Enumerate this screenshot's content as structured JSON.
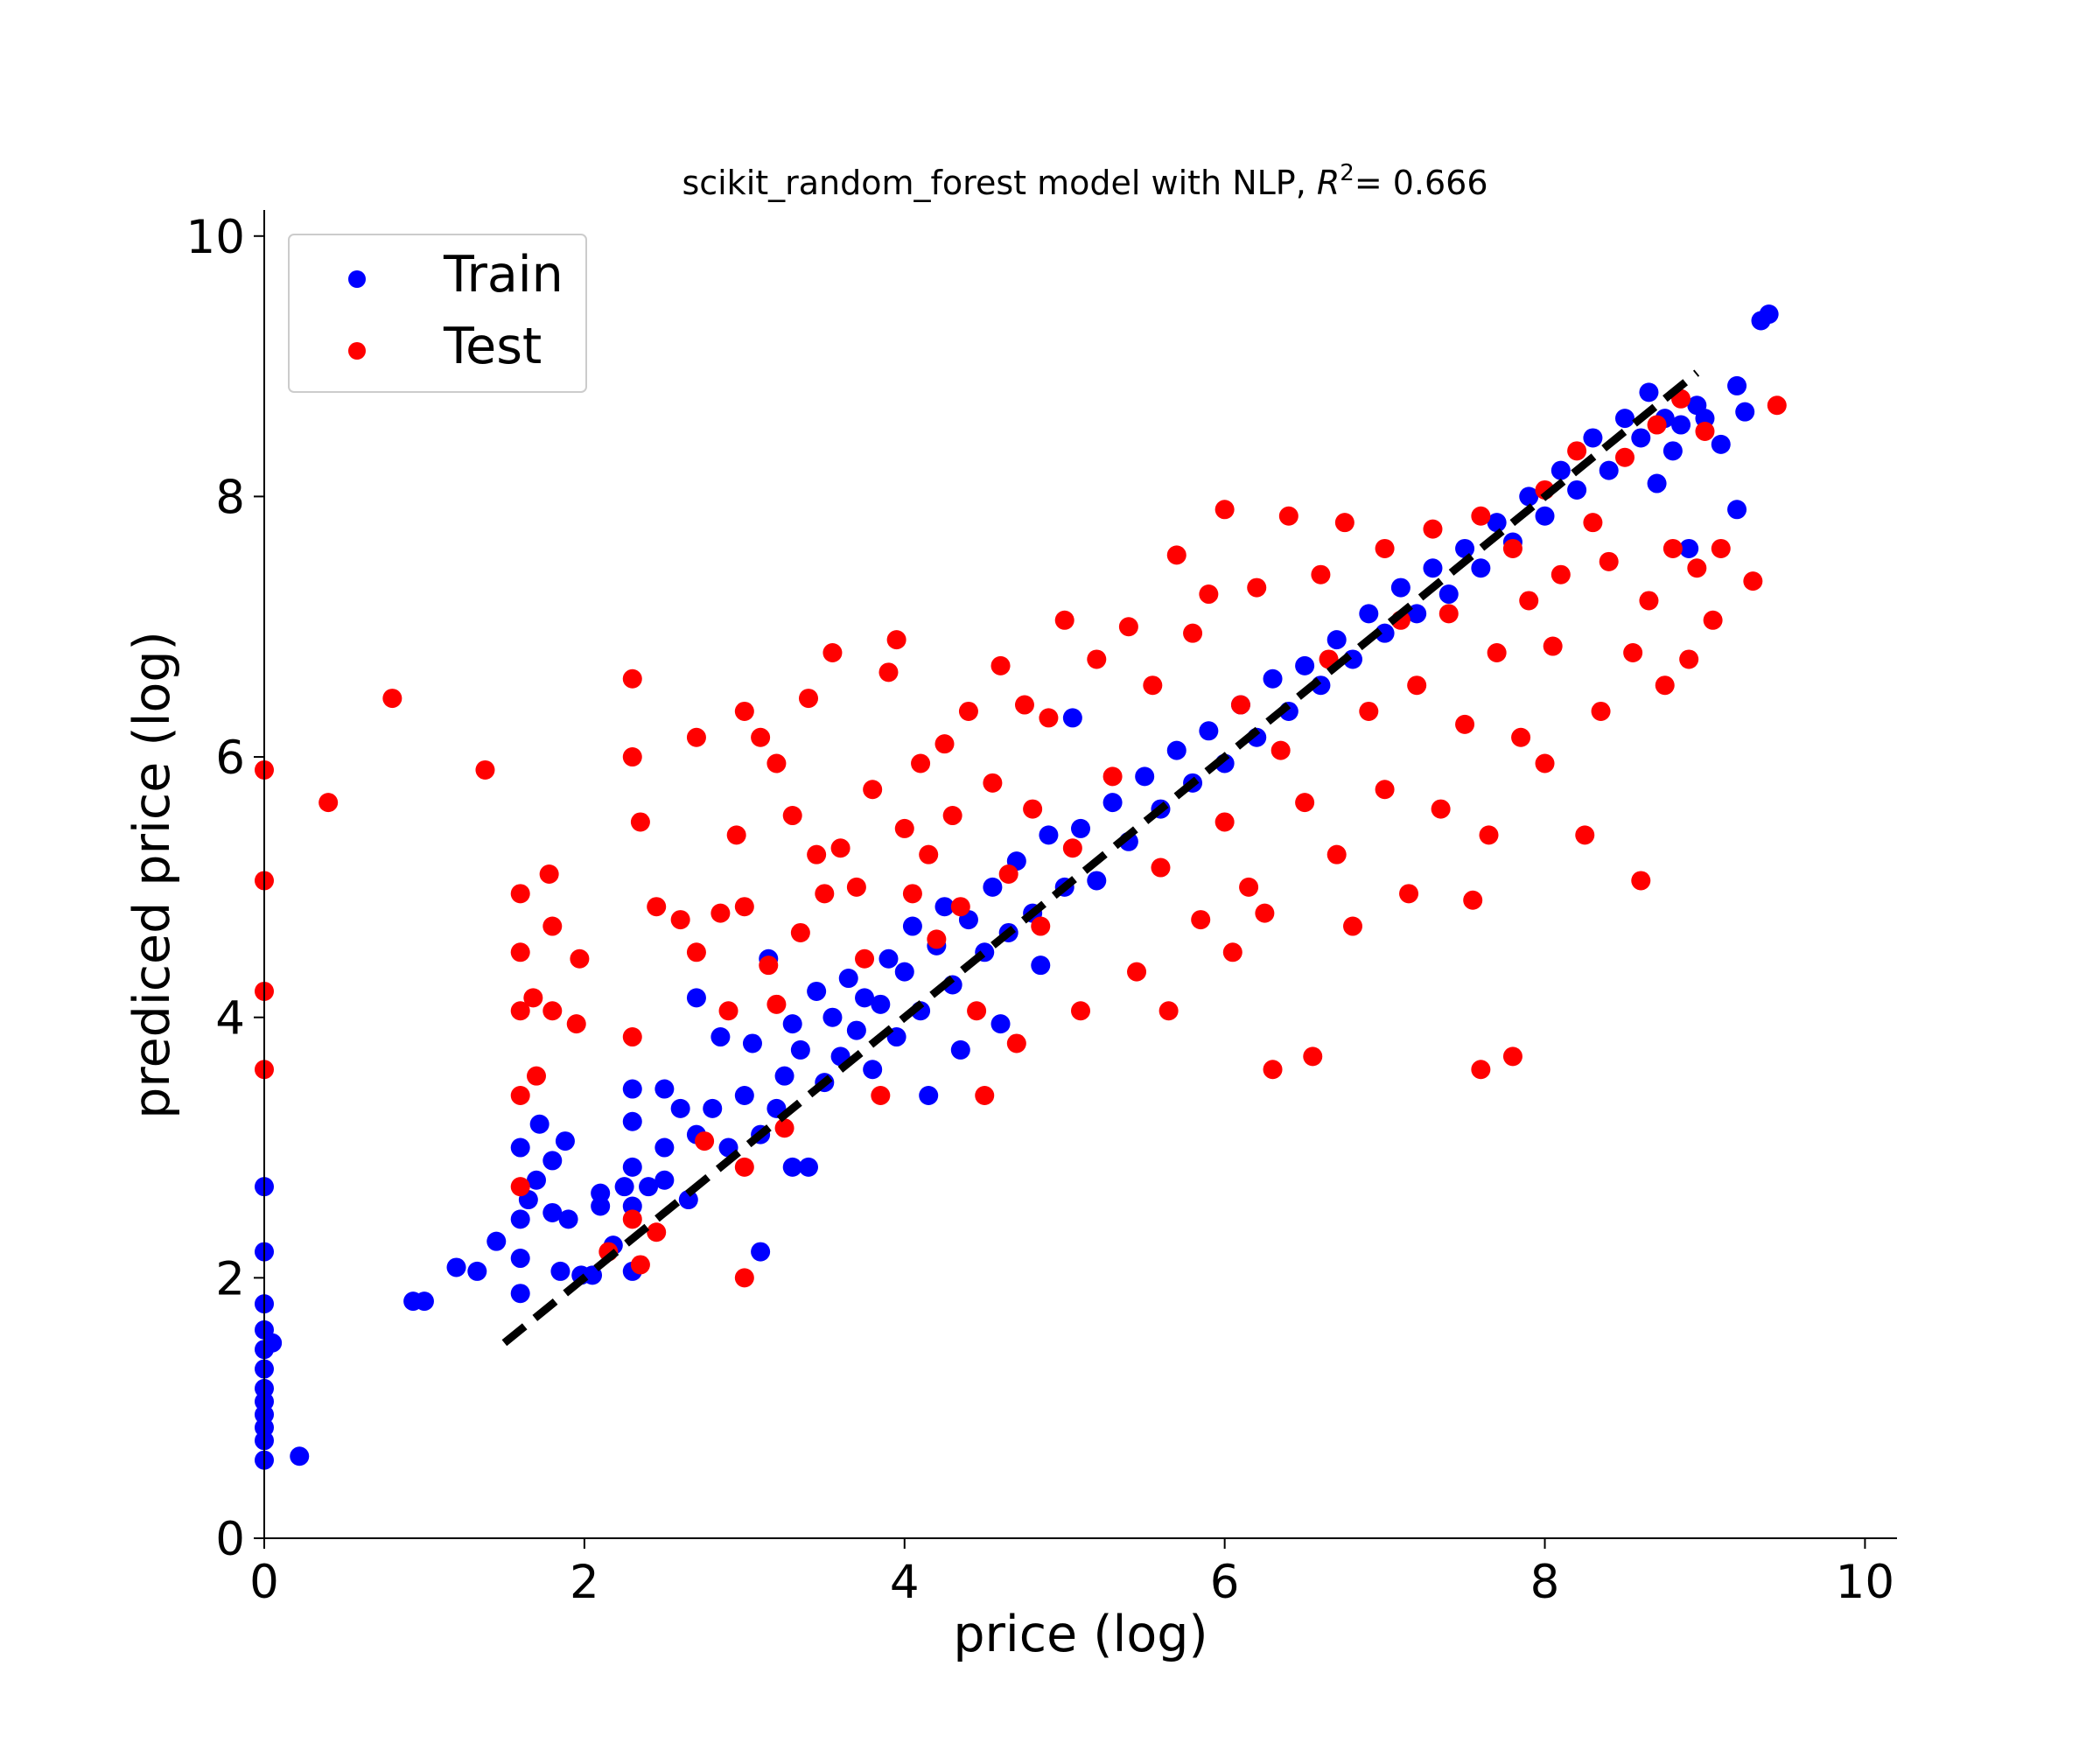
{
  "chart_data": {
    "type": "scatter",
    "title": {
      "prefix": "scikit_random_forest model with NLP, ",
      "r2_symbol": "R",
      "r2_superscript": "2",
      "suffix": "= 0.666"
    },
    "xlabel": "price (log)",
    "ylabel": "prediced price (log)",
    "xlim": [
      0,
      10.2
    ],
    "ylim": [
      0,
      10.2
    ],
    "xticks": [
      0,
      2,
      4,
      6,
      8,
      10
    ],
    "yticks": [
      0,
      2,
      4,
      6,
      8,
      10
    ],
    "grid": false,
    "legend_position": "top-left",
    "reference_line": {
      "style": "dashed",
      "color": "#000000",
      "points": [
        [
          1.5,
          1.5
        ],
        [
          8.95,
          8.95
        ]
      ]
    },
    "series": [
      {
        "name": "Train",
        "color": "#0000ff",
        "points": [
          [
            0.0,
            0.6
          ],
          [
            0.0,
            0.75
          ],
          [
            0.0,
            0.85
          ],
          [
            0.0,
            0.95
          ],
          [
            0.0,
            1.05
          ],
          [
            0.0,
            1.15
          ],
          [
            0.0,
            1.3
          ],
          [
            0.0,
            1.45
          ],
          [
            0.0,
            1.6
          ],
          [
            0.0,
            1.8
          ],
          [
            0.0,
            2.2
          ],
          [
            0.0,
            2.7
          ],
          [
            0.05,
            1.5
          ],
          [
            0.22,
            0.63
          ],
          [
            0.93,
            1.82
          ],
          [
            1.0,
            1.82
          ],
          [
            1.2,
            2.08
          ],
          [
            1.33,
            2.05
          ],
          [
            1.45,
            2.28
          ],
          [
            1.6,
            1.88
          ],
          [
            1.6,
            2.15
          ],
          [
            1.6,
            2.45
          ],
          [
            1.6,
            3.0
          ],
          [
            1.65,
            2.6
          ],
          [
            1.7,
            2.75
          ],
          [
            1.72,
            3.18
          ],
          [
            1.8,
            2.5
          ],
          [
            1.8,
            2.9
          ],
          [
            1.85,
            2.05
          ],
          [
            1.88,
            3.05
          ],
          [
            1.9,
            2.45
          ],
          [
            1.98,
            2.02
          ],
          [
            2.05,
            2.02
          ],
          [
            2.1,
            2.55
          ],
          [
            2.1,
            2.65
          ],
          [
            2.18,
            2.25
          ],
          [
            2.25,
            2.7
          ],
          [
            2.3,
            2.05
          ],
          [
            2.3,
            2.55
          ],
          [
            2.3,
            2.85
          ],
          [
            2.3,
            3.2
          ],
          [
            2.3,
            3.45
          ],
          [
            2.4,
            2.7
          ],
          [
            2.5,
            2.75
          ],
          [
            2.5,
            3.0
          ],
          [
            2.5,
            3.45
          ],
          [
            2.6,
            3.3
          ],
          [
            2.65,
            2.6
          ],
          [
            2.7,
            3.1
          ],
          [
            2.7,
            4.15
          ],
          [
            2.8,
            3.3
          ],
          [
            2.85,
            3.85
          ],
          [
            2.9,
            3.0
          ],
          [
            3.0,
            3.4
          ],
          [
            3.05,
            3.8
          ],
          [
            3.1,
            2.2
          ],
          [
            3.1,
            3.1
          ],
          [
            3.15,
            4.45
          ],
          [
            3.2,
            3.3
          ],
          [
            3.25,
            3.55
          ],
          [
            3.3,
            2.85
          ],
          [
            3.3,
            3.95
          ],
          [
            3.35,
            3.75
          ],
          [
            3.4,
            2.85
          ],
          [
            3.45,
            4.2
          ],
          [
            3.5,
            3.5
          ],
          [
            3.55,
            4.0
          ],
          [
            3.6,
            3.7
          ],
          [
            3.65,
            4.3
          ],
          [
            3.7,
            3.9
          ],
          [
            3.75,
            4.15
          ],
          [
            3.8,
            3.6
          ],
          [
            3.85,
            4.1
          ],
          [
            3.9,
            4.45
          ],
          [
            3.95,
            3.85
          ],
          [
            4.0,
            4.35
          ],
          [
            4.05,
            4.7
          ],
          [
            4.1,
            4.05
          ],
          [
            4.15,
            3.4
          ],
          [
            4.2,
            4.55
          ],
          [
            4.25,
            4.85
          ],
          [
            4.3,
            4.25
          ],
          [
            4.35,
            3.75
          ],
          [
            4.4,
            4.75
          ],
          [
            4.5,
            4.5
          ],
          [
            4.55,
            5.0
          ],
          [
            4.6,
            3.95
          ],
          [
            4.65,
            4.65
          ],
          [
            4.7,
            5.2
          ],
          [
            4.8,
            4.8
          ],
          [
            4.85,
            4.4
          ],
          [
            4.9,
            5.4
          ],
          [
            5.0,
            5.0
          ],
          [
            5.05,
            6.3
          ],
          [
            5.1,
            5.45
          ],
          [
            5.2,
            5.05
          ],
          [
            5.3,
            5.65
          ],
          [
            5.4,
            5.35
          ],
          [
            5.5,
            5.85
          ],
          [
            5.6,
            5.6
          ],
          [
            5.7,
            6.05
          ],
          [
            5.8,
            5.8
          ],
          [
            5.9,
            6.2
          ],
          [
            6.0,
            5.95
          ],
          [
            6.1,
            6.4
          ],
          [
            6.2,
            6.15
          ],
          [
            6.3,
            6.6
          ],
          [
            6.4,
            6.35
          ],
          [
            6.5,
            6.7
          ],
          [
            6.6,
            6.55
          ],
          [
            6.7,
            6.9
          ],
          [
            6.8,
            6.75
          ],
          [
            6.9,
            7.1
          ],
          [
            7.0,
            6.95
          ],
          [
            7.1,
            7.3
          ],
          [
            7.2,
            7.1
          ],
          [
            7.3,
            7.45
          ],
          [
            7.4,
            7.25
          ],
          [
            7.5,
            7.6
          ],
          [
            7.6,
            7.45
          ],
          [
            7.7,
            7.8
          ],
          [
            7.8,
            7.65
          ],
          [
            7.9,
            8.0
          ],
          [
            8.0,
            7.85
          ],
          [
            8.1,
            8.2
          ],
          [
            8.2,
            8.05
          ],
          [
            8.3,
            8.45
          ],
          [
            8.4,
            8.2
          ],
          [
            8.5,
            8.6
          ],
          [
            8.6,
            8.45
          ],
          [
            8.65,
            8.8
          ],
          [
            8.7,
            8.1
          ],
          [
            8.75,
            8.6
          ],
          [
            8.8,
            8.35
          ],
          [
            8.85,
            8.55
          ],
          [
            8.9,
            7.6
          ],
          [
            8.95,
            8.7
          ],
          [
            9.0,
            8.6
          ],
          [
            9.1,
            8.4
          ],
          [
            9.2,
            7.9
          ],
          [
            9.2,
            8.85
          ],
          [
            9.25,
            8.65
          ],
          [
            9.35,
            9.35
          ],
          [
            9.4,
            9.4
          ]
        ]
      },
      {
        "name": "Test",
        "color": "#ff0000",
        "points": [
          [
            0.0,
            5.9
          ],
          [
            0.0,
            5.05
          ],
          [
            0.0,
            4.2
          ],
          [
            0.0,
            3.6
          ],
          [
            0.4,
            5.65
          ],
          [
            0.8,
            6.45
          ],
          [
            1.38,
            5.9
          ],
          [
            1.6,
            4.95
          ],
          [
            1.6,
            4.5
          ],
          [
            1.6,
            4.05
          ],
          [
            1.6,
            3.4
          ],
          [
            1.6,
            2.7
          ],
          [
            1.68,
            4.15
          ],
          [
            1.7,
            3.55
          ],
          [
            1.78,
            5.1
          ],
          [
            1.8,
            4.7
          ],
          [
            1.8,
            4.05
          ],
          [
            1.95,
            3.95
          ],
          [
            1.97,
            4.45
          ],
          [
            2.15,
            2.2
          ],
          [
            2.3,
            6.6
          ],
          [
            2.3,
            6.0
          ],
          [
            2.3,
            3.85
          ],
          [
            2.3,
            2.45
          ],
          [
            2.35,
            5.5
          ],
          [
            2.35,
            2.1
          ],
          [
            2.45,
            2.35
          ],
          [
            2.45,
            4.85
          ],
          [
            2.6,
            4.75
          ],
          [
            2.7,
            6.15
          ],
          [
            2.7,
            4.5
          ],
          [
            2.75,
            3.05
          ],
          [
            2.85,
            4.8
          ],
          [
            2.9,
            4.05
          ],
          [
            2.95,
            5.4
          ],
          [
            3.0,
            6.35
          ],
          [
            3.0,
            4.85
          ],
          [
            3.0,
            2.85
          ],
          [
            3.0,
            2.0
          ],
          [
            3.1,
            6.15
          ],
          [
            3.15,
            4.4
          ],
          [
            3.2,
            5.95
          ],
          [
            3.2,
            4.1
          ],
          [
            3.25,
            3.15
          ],
          [
            3.3,
            5.55
          ],
          [
            3.35,
            4.65
          ],
          [
            3.4,
            6.45
          ],
          [
            3.45,
            5.25
          ],
          [
            3.5,
            4.95
          ],
          [
            3.55,
            6.8
          ],
          [
            3.6,
            5.3
          ],
          [
            3.7,
            5.0
          ],
          [
            3.75,
            4.45
          ],
          [
            3.8,
            5.75
          ],
          [
            3.85,
            3.4
          ],
          [
            3.9,
            6.65
          ],
          [
            3.95,
            6.9
          ],
          [
            4.0,
            5.45
          ],
          [
            4.05,
            4.95
          ],
          [
            4.1,
            5.95
          ],
          [
            4.15,
            5.25
          ],
          [
            4.2,
            4.6
          ],
          [
            4.25,
            6.1
          ],
          [
            4.3,
            5.55
          ],
          [
            4.35,
            4.85
          ],
          [
            4.4,
            6.35
          ],
          [
            4.45,
            4.05
          ],
          [
            4.5,
            3.4
          ],
          [
            4.55,
            5.8
          ],
          [
            4.6,
            6.7
          ],
          [
            4.65,
            5.1
          ],
          [
            4.7,
            3.8
          ],
          [
            4.75,
            6.4
          ],
          [
            4.8,
            5.6
          ],
          [
            4.85,
            4.7
          ],
          [
            4.9,
            6.3
          ],
          [
            5.0,
            7.05
          ],
          [
            5.05,
            5.3
          ],
          [
            5.1,
            4.05
          ],
          [
            5.2,
            6.75
          ],
          [
            5.3,
            5.85
          ],
          [
            5.4,
            7.0
          ],
          [
            5.45,
            4.35
          ],
          [
            5.55,
            6.55
          ],
          [
            5.6,
            5.15
          ],
          [
            5.65,
            4.05
          ],
          [
            5.7,
            7.55
          ],
          [
            5.8,
            6.95
          ],
          [
            5.85,
            4.75
          ],
          [
            5.9,
            7.25
          ],
          [
            6.0,
            5.5
          ],
          [
            6.0,
            7.9
          ],
          [
            6.05,
            4.5
          ],
          [
            6.1,
            6.4
          ],
          [
            6.15,
            5.0
          ],
          [
            6.2,
            7.3
          ],
          [
            6.25,
            4.8
          ],
          [
            6.3,
            3.6
          ],
          [
            6.35,
            6.05
          ],
          [
            6.4,
            7.85
          ],
          [
            6.5,
            5.65
          ],
          [
            6.55,
            3.7
          ],
          [
            6.6,
            7.4
          ],
          [
            6.65,
            6.75
          ],
          [
            6.7,
            5.25
          ],
          [
            6.75,
            7.8
          ],
          [
            6.8,
            4.7
          ],
          [
            6.9,
            6.35
          ],
          [
            7.0,
            7.6
          ],
          [
            7.0,
            5.75
          ],
          [
            7.1,
            7.05
          ],
          [
            7.15,
            4.95
          ],
          [
            7.2,
            6.55
          ],
          [
            7.3,
            7.75
          ],
          [
            7.35,
            5.6
          ],
          [
            7.4,
            7.1
          ],
          [
            7.5,
            6.25
          ],
          [
            7.55,
            4.9
          ],
          [
            7.6,
            7.85
          ],
          [
            7.6,
            3.6
          ],
          [
            7.65,
            5.4
          ],
          [
            7.7,
            6.8
          ],
          [
            7.8,
            7.6
          ],
          [
            7.8,
            3.7
          ],
          [
            7.85,
            6.15
          ],
          [
            7.9,
            7.2
          ],
          [
            8.0,
            8.05
          ],
          [
            8.0,
            5.95
          ],
          [
            8.05,
            6.85
          ],
          [
            8.1,
            7.4
          ],
          [
            8.2,
            8.35
          ],
          [
            8.25,
            5.4
          ],
          [
            8.3,
            7.8
          ],
          [
            8.35,
            6.35
          ],
          [
            8.4,
            7.5
          ],
          [
            8.5,
            8.3
          ],
          [
            8.55,
            6.8
          ],
          [
            8.6,
            5.05
          ],
          [
            8.65,
            7.2
          ],
          [
            8.7,
            8.55
          ],
          [
            8.75,
            6.55
          ],
          [
            8.8,
            7.6
          ],
          [
            8.85,
            8.75
          ],
          [
            8.9,
            6.75
          ],
          [
            8.95,
            7.45
          ],
          [
            9.0,
            8.5
          ],
          [
            9.05,
            7.05
          ],
          [
            9.1,
            7.6
          ],
          [
            9.3,
            7.35
          ],
          [
            9.45,
            8.7
          ]
        ]
      }
    ]
  }
}
